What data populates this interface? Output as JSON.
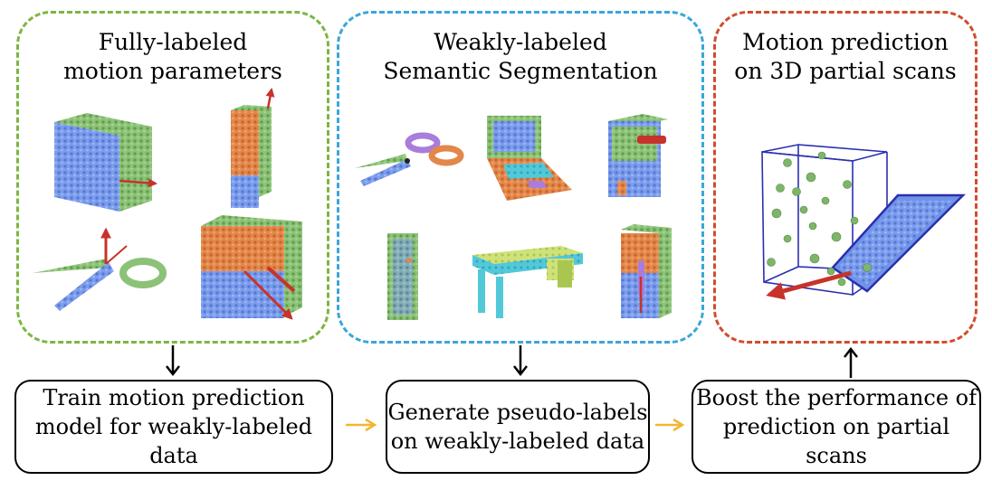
{
  "panels": {
    "fully_labeled": {
      "title": "Fully-labeled\nmotion parameters"
    },
    "weakly_labeled": {
      "title": "Weakly-labeled\nSemantic Segmentation"
    },
    "partial_scans": {
      "title": "Motion prediction\non 3D partial scans"
    }
  },
  "boxes": {
    "train": "Train motion prediction\nmodel for weakly-labeled data",
    "generate": "Generate pseudo-labels\non weakly-labeled data",
    "boost": "Boost the performance of\nprediction on partial scans"
  },
  "colors": {
    "green_panel": "#7db542",
    "blue_panel": "#3aa6d9",
    "red_panel": "#d44a2e",
    "flow_arrow": "#f2b632",
    "points_green": "#7fb56a",
    "points_blue": "#6f93e6",
    "points_orange": "#e07c3c",
    "motion_arrow": "#c7332a"
  },
  "objects": {
    "fully_labeled": [
      "cabinet-door-icon",
      "tall-cabinet-icon",
      "scissors-icon",
      "drawer-cabinet-icon"
    ],
    "weakly_labeled": [
      "scissors-icon",
      "laptop-icon",
      "fridge-icon",
      "door-icon",
      "desk-icon",
      "wardrobe-icon"
    ],
    "partial_scans": [
      "partial-scan-box-icon"
    ]
  }
}
